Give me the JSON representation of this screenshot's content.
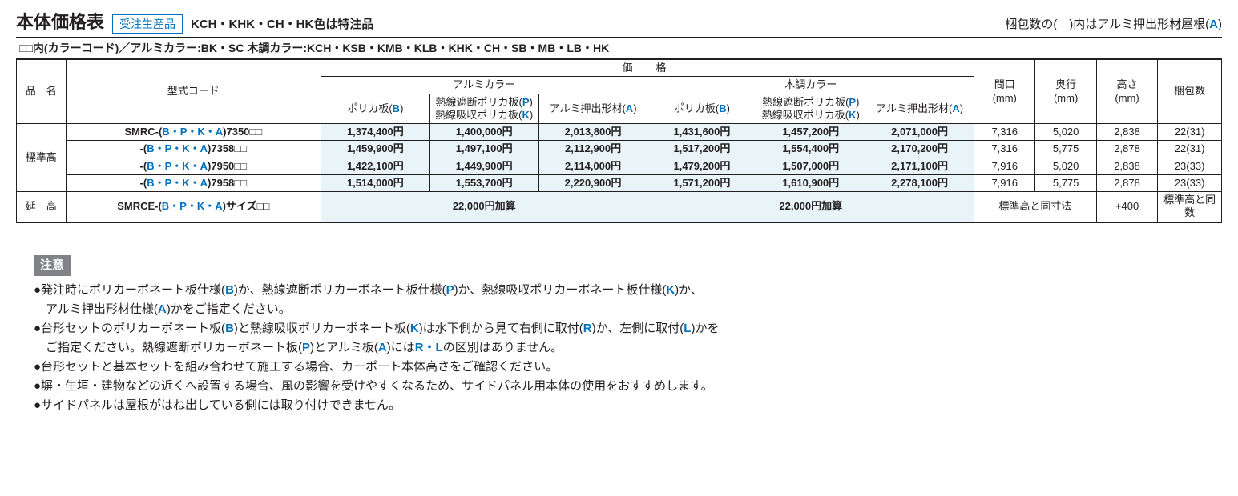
{
  "header": {
    "title": "本体価格表",
    "badge": "受注生産品",
    "note_after_badge": "KCH・KHK・CH・HK色は特注品",
    "right_note_prefix": "梱包数の(　)内はアルミ押出形材屋根(",
    "right_note_a": "A",
    "right_note_suffix": ")"
  },
  "subheader": {
    "prefix": "□□内(カラーコード)／アルミカラー:",
    "aluminum_colors": "BK・SC",
    "wood_prefix": " 木調カラー:",
    "wood_colors": "KCH・KSB・KMB・KLB・KHK・CH・SB・MB・LB・HK"
  },
  "table": {
    "col_product": "品　名",
    "col_model": "型式コード",
    "col_price": "価　格",
    "col_aluminum": "アルミカラー",
    "col_wood": "木調カラー",
    "col_polyca": "ポリカ板(",
    "col_polyca_b": "B",
    "col_polyca_close": ")",
    "col_heat_line1": "熱線遮断ポリカ板(",
    "col_heat_p": "P",
    "col_heat_line2": "熱線吸収ポリカ板(",
    "col_heat_k": "K",
    "col_ext": "アルミ押出形材(",
    "col_ext_a": "A",
    "col_maguchi": "間口",
    "col_okuyuki": "奥行",
    "col_takasa": "高さ",
    "col_mm": "(mm)",
    "col_pack": "梱包数"
  },
  "row_labels": {
    "std": "標準高",
    "ext": "延　高"
  },
  "model_prefix_full": "SMRC-(",
  "model_prefix_cont": "-(",
  "model_bpka": "B・P・K・A",
  "model_ext_prefix": "SMRCE-(",
  "model_ext_suffix": ")サイズ□□",
  "rows": [
    {
      "code": ")7350□□",
      "p": [
        "1,374,400円",
        "1,400,000円",
        "2,013,800円",
        "1,431,600円",
        "1,457,200円",
        "2,071,000円"
      ],
      "d": [
        "7,316",
        "5,020",
        "2,838"
      ],
      "pk": "22(31)"
    },
    {
      "code": ")7358□□",
      "p": [
        "1,459,900円",
        "1,497,100円",
        "2,112,900円",
        "1,517,200円",
        "1,554,400円",
        "2,170,200円"
      ],
      "d": [
        "7,316",
        "5,775",
        "2,878"
      ],
      "pk": "22(31)"
    },
    {
      "code": ")7950□□",
      "p": [
        "1,422,100円",
        "1,449,900円",
        "2,114,000円",
        "1,479,200円",
        "1,507,000円",
        "2,171,100円"
      ],
      "d": [
        "7,916",
        "5,020",
        "2,838"
      ],
      "pk": "23(33)"
    },
    {
      "code": ")7958□□",
      "p": [
        "1,514,000円",
        "1,553,700円",
        "2,220,900円",
        "1,571,200円",
        "1,610,900円",
        "2,278,100円"
      ],
      "d": [
        "7,916",
        "5,775",
        "2,878"
      ],
      "pk": "23(33)"
    }
  ],
  "ext_row": {
    "add_price": "22,000円加算",
    "dim_note": "標準高と同寸法",
    "height_add": "+400",
    "pack_note": "標準高と同数"
  },
  "notes": {
    "badge": "注意",
    "items": [
      {
        "segs": [
          {
            "t": "●発注時にポリカーボネート板仕様("
          },
          {
            "t": "B",
            "b": 1
          },
          {
            "t": ")か、熱線遮断ポリカーボネート板仕様("
          },
          {
            "t": "P",
            "b": 1
          },
          {
            "t": ")か、熱線吸収ポリカーボネート板仕様("
          },
          {
            "t": "K",
            "b": 1
          },
          {
            "t": ")か、"
          }
        ]
      },
      {
        "segs": [
          {
            "t": "　アルミ押出形材仕様("
          },
          {
            "t": "A",
            "b": 1
          },
          {
            "t": ")かをご指定ください。"
          }
        ]
      },
      {
        "segs": [
          {
            "t": "●台形セットのポリカーボネート板("
          },
          {
            "t": "B",
            "b": 1
          },
          {
            "t": ")と熱線吸収ポリカーボネート板("
          },
          {
            "t": "K",
            "b": 1
          },
          {
            "t": ")は水下側から見て右側に取付("
          },
          {
            "t": "R",
            "b": 1
          },
          {
            "t": ")か、左側に取付("
          },
          {
            "t": "L",
            "b": 1
          },
          {
            "t": ")かを"
          }
        ]
      },
      {
        "segs": [
          {
            "t": "　ご指定ください。熱線遮断ポリカーボネート板("
          },
          {
            "t": "P",
            "b": 1
          },
          {
            "t": ")とアルミ板("
          },
          {
            "t": "A",
            "b": 1
          },
          {
            "t": ")には"
          },
          {
            "t": "R・L",
            "b": 1
          },
          {
            "t": "の区別はありません。"
          }
        ]
      },
      {
        "segs": [
          {
            "t": "●台形セットと基本セットを組み合わせて施工する場合、カーポート本体高さをご確認ください。"
          }
        ]
      },
      {
        "segs": [
          {
            "t": "●塀・生垣・建物などの近くへ設置する場合、風の影響を受けやすくなるため、サイドパネル用本体の使用をおすすめします。"
          }
        ]
      },
      {
        "segs": [
          {
            "t": "●サイドパネルは屋根がはね出している側には取り付けできません。"
          }
        ]
      }
    ]
  },
  "colors": {
    "accent": "#0071bc",
    "price_bg": "#e8f4f8",
    "text": "#231f20",
    "notes_badge_bg": "#808285"
  }
}
